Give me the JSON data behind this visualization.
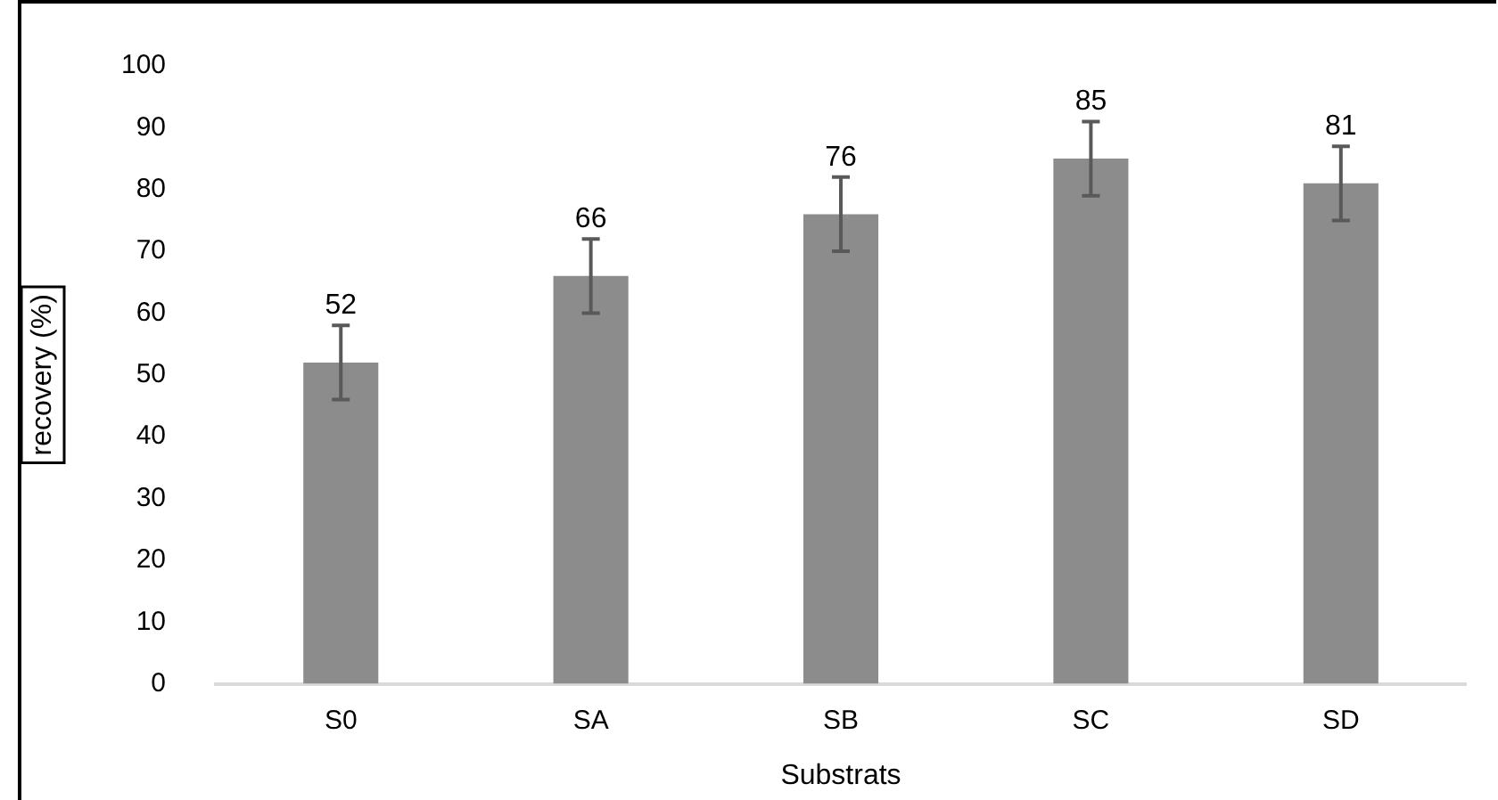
{
  "chart_data": {
    "type": "bar",
    "xlabel": "Substrats",
    "ylabel": "recovery (%)",
    "categories": [
      "S0",
      "SA",
      "SB",
      "SC",
      "SD"
    ],
    "values": [
      52,
      66,
      76,
      85,
      81
    ],
    "errors": [
      6,
      6,
      6,
      6,
      6
    ],
    "color": "#8c8c8c",
    "ylim": [
      0,
      100
    ],
    "yticks": [
      0,
      10,
      20,
      30,
      40,
      50,
      60,
      70,
      80,
      90,
      100
    ],
    "grid": false,
    "legend": false,
    "data_labels": true
  }
}
